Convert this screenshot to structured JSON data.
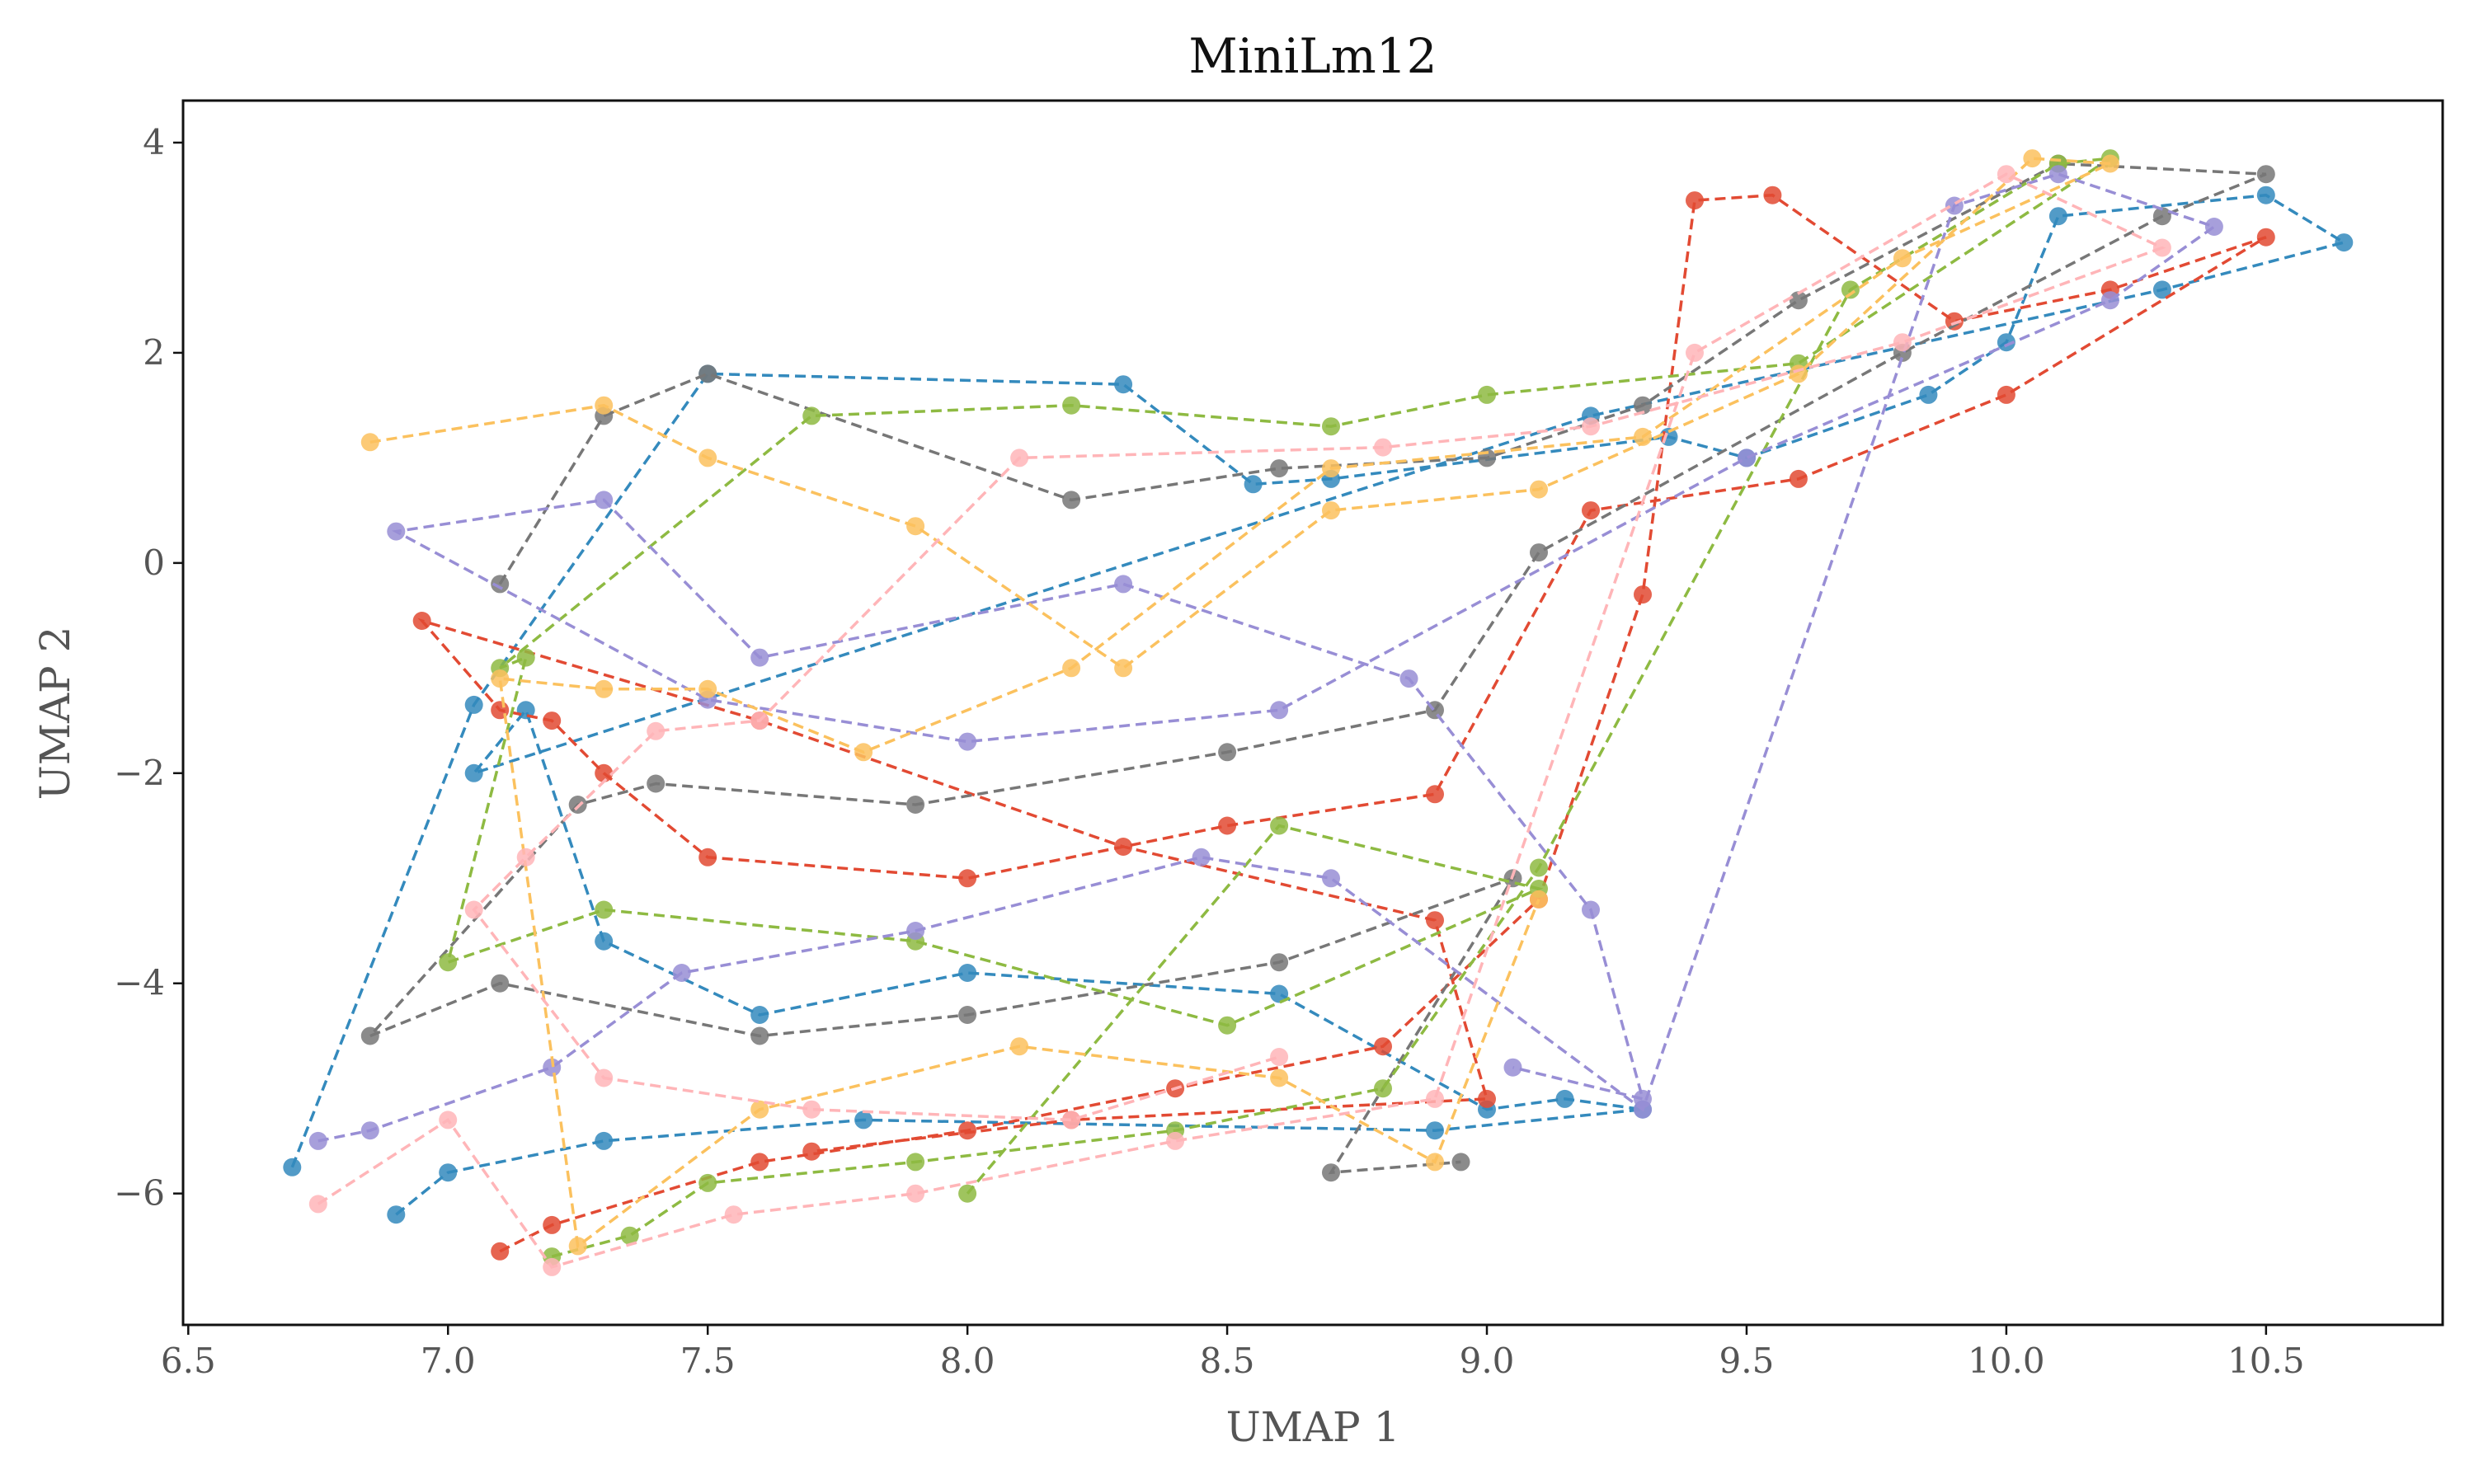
{
  "chart_data": {
    "type": "scatter",
    "title": "MiniLm12",
    "xlabel": "UMAP 1",
    "ylabel": "UMAP 2",
    "xlim": [
      6.49,
      10.84
    ],
    "ylim": [
      -7.25,
      4.4
    ],
    "xticks": [
      6.5,
      7.0,
      7.5,
      8.0,
      8.5,
      9.0,
      9.5,
      10.0,
      10.5
    ],
    "yticks": [
      -6,
      -4,
      -2,
      0,
      2,
      4
    ],
    "xtick_labels": [
      "6.5",
      "7.0",
      "7.5",
      "8.0",
      "8.5",
      "9.0",
      "9.5",
      "10.0",
      "10.5"
    ],
    "ytick_labels": [
      "−6",
      "−4",
      "−2",
      "0",
      "2",
      "4"
    ],
    "grid": false,
    "legend": "none",
    "point_style": "filled circles connected by dashed lines in sequence order",
    "colors": [
      "#348abd",
      "#e24a33",
      "#777777",
      "#8eba42",
      "#988ed5",
      "#fbc15e",
      "#ffb5b8"
    ],
    "series": [
      {
        "color": "#348abd",
        "x": [
          6.7,
          7.05,
          7.5,
          8.3,
          8.55,
          8.7,
          9.35,
          9.5,
          9.85,
          10.0,
          10.1,
          10.5,
          10.65,
          10.3,
          9.2,
          7.05,
          7.15,
          7.3,
          7.6,
          8.0,
          8.6,
          9.0,
          9.15,
          9.3,
          8.9,
          7.8,
          7.3,
          7.0,
          6.9
        ],
        "y": [
          -5.75,
          -1.35,
          1.8,
          1.7,
          0.75,
          0.8,
          1.2,
          1.0,
          1.6,
          2.1,
          3.3,
          3.5,
          3.05,
          2.6,
          1.4,
          -2.0,
          -1.4,
          -3.6,
          -4.3,
          -3.9,
          -4.1,
          -5.2,
          -5.1,
          -5.2,
          -5.4,
          -5.3,
          -5.5,
          -5.8,
          -6.2
        ]
      },
      {
        "color": "#e24a33",
        "x": [
          7.1,
          7.2,
          7.6,
          8.0,
          8.4,
          8.8,
          9.1,
          9.3,
          9.4,
          9.55,
          9.9,
          10.2,
          10.5,
          10.0,
          9.6,
          9.2,
          8.9,
          8.5,
          8.0,
          7.5,
          7.3,
          7.2,
          7.1,
          6.95,
          7.6,
          8.3,
          8.9,
          9.0,
          8.2,
          7.7
        ],
        "y": [
          -6.55,
          -6.3,
          -5.7,
          -5.4,
          -5.0,
          -4.6,
          -3.2,
          -0.3,
          3.45,
          3.5,
          2.3,
          2.6,
          3.1,
          1.6,
          0.8,
          0.5,
          -2.2,
          -2.5,
          -3.0,
          -2.8,
          -2.0,
          -1.5,
          -1.4,
          -0.55,
          -1.5,
          -2.7,
          -3.4,
          -5.1,
          -5.3,
          -5.6
        ]
      },
      {
        "color": "#777777",
        "x": [
          7.1,
          7.3,
          7.5,
          8.2,
          8.6,
          9.0,
          9.3,
          9.6,
          10.1,
          10.5,
          10.3,
          9.8,
          9.1,
          8.9,
          8.5,
          7.9,
          7.4,
          7.25,
          6.85,
          7.1,
          7.6,
          8.0,
          8.6,
          9.05,
          8.7,
          8.95
        ],
        "y": [
          -0.2,
          1.4,
          1.8,
          0.6,
          0.9,
          1.0,
          1.5,
          2.5,
          3.8,
          3.7,
          3.3,
          2.0,
          0.1,
          -1.4,
          -1.8,
          -2.3,
          -2.1,
          -2.3,
          -4.5,
          -4.0,
          -4.5,
          -4.3,
          -3.8,
          -3.0,
          -5.8,
          -5.7
        ]
      },
      {
        "color": "#8eba42",
        "x": [
          7.2,
          7.35,
          7.5,
          7.9,
          8.4,
          8.8,
          9.1,
          9.7,
          10.1,
          10.2,
          9.6,
          9.0,
          8.7,
          8.2,
          7.7,
          7.1,
          7.15,
          7.0,
          7.3,
          7.9,
          8.5,
          9.1,
          8.6,
          8.0
        ],
        "y": [
          -6.6,
          -6.4,
          -5.9,
          -5.7,
          -5.4,
          -5.0,
          -2.9,
          2.6,
          3.8,
          3.85,
          1.9,
          1.6,
          1.3,
          1.5,
          1.4,
          -1.0,
          -0.9,
          -3.8,
          -3.3,
          -3.6,
          -4.4,
          -3.1,
          -2.5,
          -6.0
        ]
      },
      {
        "color": "#988ed5",
        "x": [
          6.75,
          6.85,
          7.2,
          7.45,
          7.9,
          8.45,
          8.7,
          9.3,
          9.9,
          10.1,
          10.4,
          10.2,
          9.5,
          8.6,
          8.0,
          7.5,
          6.9,
          7.3,
          7.6,
          8.3,
          8.85,
          9.2,
          9.3,
          9.05
        ],
        "y": [
          -5.5,
          -5.4,
          -4.8,
          -3.9,
          -3.5,
          -2.8,
          -3.0,
          -5.2,
          3.4,
          3.7,
          3.2,
          2.5,
          1.0,
          -1.4,
          -1.7,
          -1.3,
          0.3,
          0.6,
          -0.9,
          -0.2,
          -1.1,
          -3.3,
          -5.1,
          -4.8
        ]
      },
      {
        "color": "#fbc15e",
        "x": [
          6.85,
          7.3,
          7.5,
          7.9,
          8.3,
          8.7,
          9.1,
          9.6,
          10.05,
          10.2,
          9.8,
          9.3,
          8.7,
          8.2,
          7.8,
          7.5,
          7.3,
          7.1,
          7.25,
          7.6,
          8.1,
          8.6,
          8.9,
          9.1
        ],
        "y": [
          1.15,
          1.5,
          1.0,
          0.35,
          -1.0,
          0.5,
          0.7,
          1.8,
          3.85,
          3.8,
          2.9,
          1.2,
          0.9,
          -1.0,
          -1.8,
          -1.2,
          -1.2,
          -1.1,
          -6.5,
          -5.2,
          -4.6,
          -4.9,
          -5.7,
          -3.2
        ]
      },
      {
        "color": "#ffb5b8",
        "x": [
          6.75,
          7.0,
          7.2,
          7.55,
          7.9,
          8.4,
          8.9,
          9.4,
          10.0,
          10.3,
          9.8,
          9.2,
          8.8,
          8.1,
          7.6,
          7.4,
          7.15,
          7.05,
          7.3,
          7.7,
          8.2,
          8.6
        ],
        "y": [
          -6.1,
          -5.3,
          -6.7,
          -6.2,
          -6.0,
          -5.5,
          -5.1,
          2.0,
          3.7,
          3.0,
          2.1,
          1.3,
          1.1,
          1.0,
          -1.5,
          -1.6,
          -2.8,
          -3.3,
          -4.9,
          -5.2,
          -5.3,
          -4.7
        ]
      }
    ]
  }
}
